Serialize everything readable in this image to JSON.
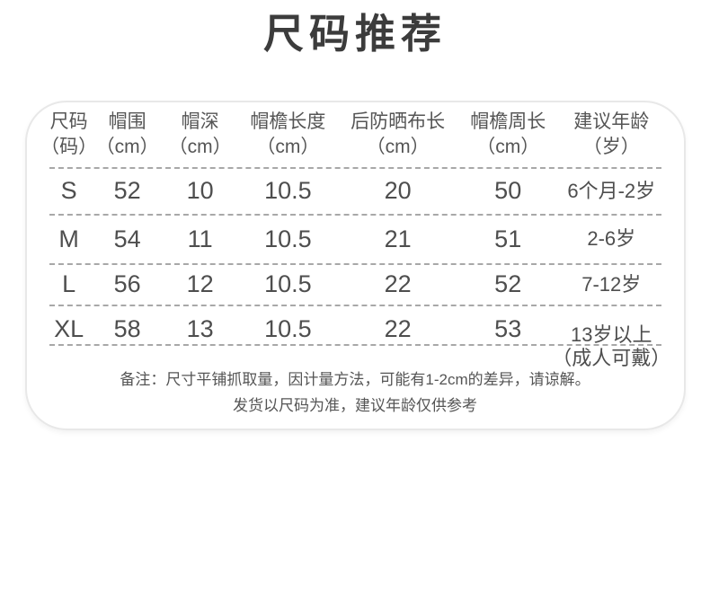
{
  "title": "尺码推荐",
  "table": {
    "headers": [
      {
        "label": "尺码",
        "unit": "（码）"
      },
      {
        "label": "帽围",
        "unit": "（cm）"
      },
      {
        "label": "帽深",
        "unit": "（cm）"
      },
      {
        "label": "帽檐长度",
        "unit": "（cm）"
      },
      {
        "label": "后防晒布长",
        "unit": "（cm）"
      },
      {
        "label": "帽檐周长",
        "unit": "（cm）"
      },
      {
        "label": "建议年龄",
        "unit": "（岁）"
      }
    ],
    "rows": [
      {
        "size": "S",
        "values": [
          "52",
          "10",
          "10.5",
          "20",
          "50"
        ],
        "age": "6个月-2岁",
        "age2": ""
      },
      {
        "size": "M",
        "values": [
          "54",
          "11",
          "10.5",
          "21",
          "51"
        ],
        "age": "2-6岁",
        "age2": ""
      },
      {
        "size": "L",
        "values": [
          "56",
          "12",
          "10.5",
          "22",
          "52"
        ],
        "age": "7-12岁",
        "age2": ""
      },
      {
        "size": "XL",
        "values": [
          "58",
          "13",
          "10.5",
          "22",
          "53"
        ],
        "age": "13岁以上",
        "age2": "（成人可戴）"
      }
    ]
  },
  "note": {
    "line1": "备注：尺寸平铺抓取量，因计量方法，可能有1-2cm的差异，请谅解。",
    "line2": "发货以尺码为准，建议年龄仅供参考"
  },
  "colors": {
    "title_text": "#3c3c3c",
    "body_text": "#4e4e4e",
    "header_text": "#555555",
    "dashed_line": "#a8a8a8",
    "card_border": "#e8e8e8",
    "background": "#ffffff"
  }
}
